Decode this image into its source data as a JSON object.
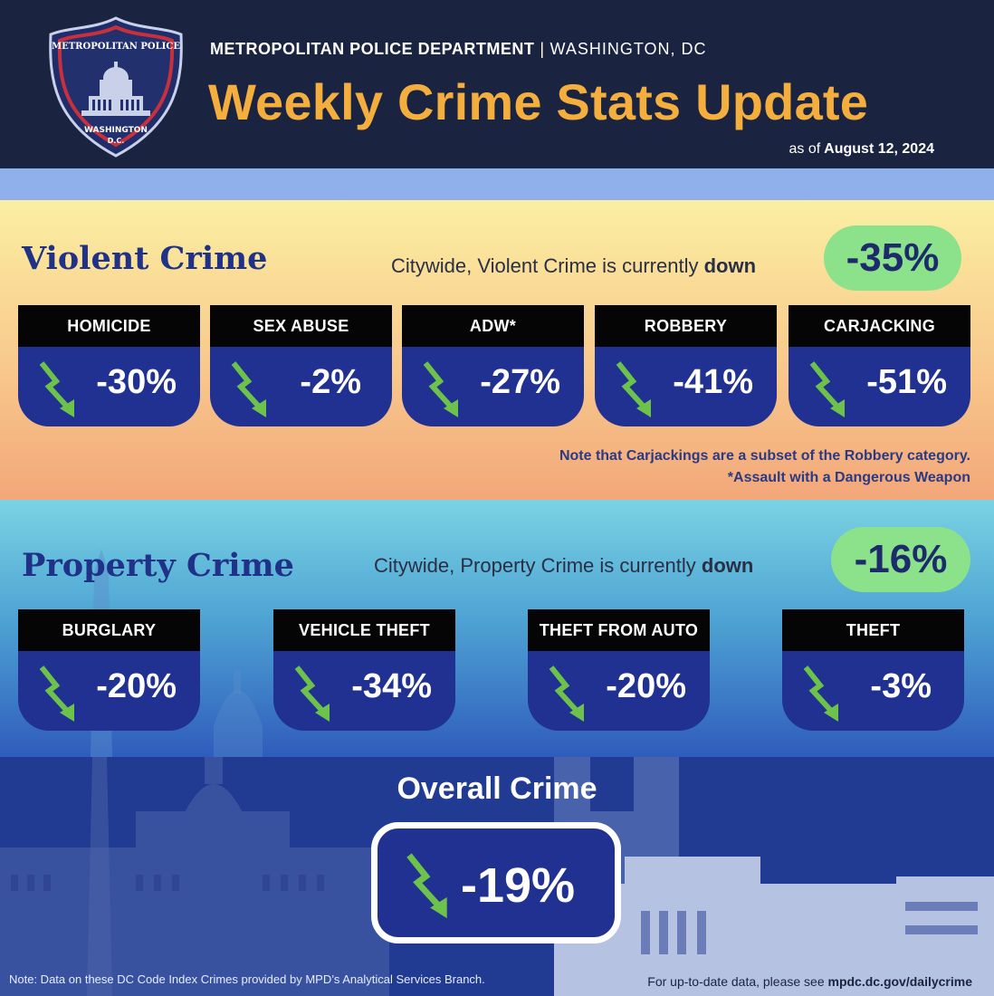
{
  "header": {
    "agency": "METROPOLITAN POLICE DEPARTMENT",
    "separator": "|",
    "city": "WASHINGTON, DC",
    "title": "Weekly Crime Stats Update",
    "as_of_prefix": "as of",
    "as_of_date": "August 12, 2024"
  },
  "badge": {
    "text_top": "METROPOLITAN POLICE",
    "text_bottom": "WASHINGTON",
    "text_dc": "D.C."
  },
  "violent": {
    "title": "Violent Crime",
    "summary_prefix": "Citywide, Violent Crime is currently",
    "summary_word": "down",
    "change": "-35%",
    "categories": [
      {
        "label": "HOMICIDE",
        "change": "-30%"
      },
      {
        "label": "SEX ABUSE",
        "change": "-2%"
      },
      {
        "label": "ADW*",
        "change": "-27%"
      },
      {
        "label": "ROBBERY",
        "change": "-41%"
      },
      {
        "label": "CARJACKING",
        "change": "-51%"
      }
    ],
    "note1": "Note that Carjackings are a subset of the Robbery category.",
    "note2": "*Assault with a Dangerous Weapon"
  },
  "property": {
    "title": "Property Crime",
    "summary_prefix": "Citywide, Property Crime is currently",
    "summary_word": "down",
    "change": "-16%",
    "categories": [
      {
        "label": "BURGLARY",
        "change": "-20%"
      },
      {
        "label": "VEHICLE THEFT",
        "change": "-34%"
      },
      {
        "label": "THEFT FROM AUTO",
        "change": "-20%"
      },
      {
        "label": "THEFT",
        "change": "-3%"
      }
    ]
  },
  "overall": {
    "title": "Overall Crime",
    "change": "-19%"
  },
  "footer": {
    "note": "Note: Data on these DC Code Index Crimes provided by MPD’s Analytical Services Branch.",
    "link_prefix": "For up-to-date data, please see",
    "link": "mpdc.dc.gov/dailycrime"
  },
  "colors": {
    "header_bg": "#1a2340",
    "title_gold": "#f4ae3d",
    "card_blue": "#213191",
    "arrow_green": "#6cc24a",
    "pill_green": "#8be28b",
    "section_title_blue": "#1f3287"
  },
  "icons": {
    "trend": "down-arrow-icon",
    "badge": "police-badge-icon"
  }
}
